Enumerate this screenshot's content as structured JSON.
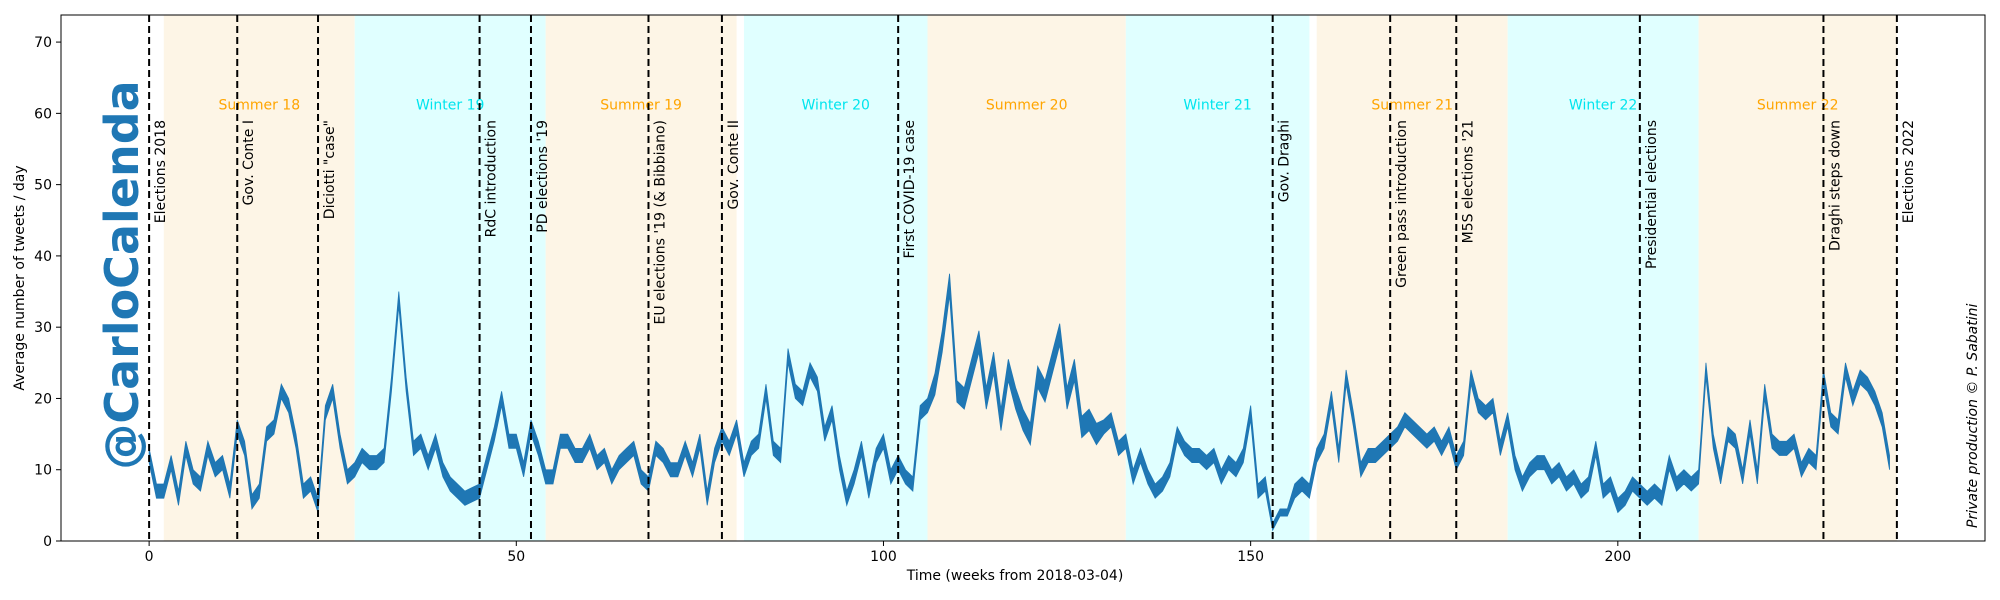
{
  "chart_data": {
    "type": "band",
    "watermark": "@CarloCalenda",
    "credit": "Private production © P. Sabatini",
    "x_label": "Time (weeks from 2018-03-04)",
    "y_label": "Average number of tweets / day",
    "xlim": [
      -12,
      250
    ],
    "ylim": [
      0,
      73.8
    ],
    "xticks": [
      0,
      50,
      100,
      150,
      200
    ],
    "yticks": [
      0,
      10,
      20,
      30,
      40,
      50,
      60,
      70
    ],
    "band": {
      "color": "#1f77b4",
      "x": [
        0,
        1,
        2,
        3,
        4,
        5,
        6,
        7,
        8,
        9,
        10,
        11,
        12,
        13,
        14,
        15,
        16,
        17,
        18,
        19,
        20,
        21,
        22,
        23,
        24,
        25,
        26,
        27,
        28,
        29,
        30,
        31,
        32,
        33,
        34,
        35,
        36,
        37,
        38,
        39,
        40,
        41,
        42,
        43,
        44,
        45,
        46,
        47,
        48,
        49,
        50,
        51,
        52,
        53,
        54,
        55,
        56,
        57,
        58,
        59,
        60,
        61,
        62,
        63,
        64,
        65,
        66,
        67,
        68,
        69,
        70,
        71,
        72,
        73,
        74,
        75,
        76,
        77,
        78,
        79,
        80,
        81,
        82,
        83,
        84,
        85,
        86,
        87,
        88,
        89,
        90,
        91,
        92,
        93,
        94,
        95,
        96,
        97,
        98,
        99,
        100,
        101,
        102,
        103,
        104,
        105,
        106,
        107,
        108,
        109,
        110,
        111,
        112,
        113,
        114,
        115,
        116,
        117,
        118,
        119,
        120,
        121,
        122,
        123,
        124,
        125,
        126,
        127,
        128,
        129,
        130,
        131,
        132,
        133,
        134,
        135,
        136,
        137,
        138,
        139,
        140,
        141,
        142,
        143,
        144,
        145,
        146,
        147,
        148,
        149,
        150,
        151,
        152,
        153,
        154,
        155,
        156,
        157,
        158,
        159,
        160,
        161,
        162,
        163,
        164,
        165,
        166,
        167,
        168,
        169,
        170,
        171,
        172,
        173,
        174,
        175,
        176,
        177,
        178,
        179,
        180,
        181,
        182,
        183,
        184,
        185,
        186,
        187,
        188,
        189,
        190,
        191,
        192,
        193,
        194,
        195,
        196,
        197,
        198,
        199,
        200,
        201,
        202,
        203,
        204,
        205,
        206,
        207,
        208,
        209,
        210,
        211,
        212,
        213,
        214,
        215,
        216,
        217,
        218,
        219,
        220,
        221,
        222,
        223,
        224,
        225,
        226,
        227,
        228,
        229,
        230,
        231,
        232,
        233,
        234,
        235,
        236,
        237
      ],
      "low": [
        11,
        6,
        6,
        10,
        5,
        12,
        8,
        7,
        12,
        9,
        10,
        6,
        15,
        12,
        4.5,
        6,
        14,
        15,
        20,
        18,
        13,
        6,
        7,
        4,
        17,
        20,
        13,
        8,
        9,
        11,
        10,
        10,
        11,
        21,
        33,
        21,
        12,
        13,
        10,
        13,
        9,
        7,
        6,
        5,
        5.5,
        6,
        10,
        14,
        19,
        13,
        13,
        9,
        15,
        12,
        8,
        8,
        13,
        13,
        11,
        11,
        13,
        10,
        11,
        8,
        10,
        11,
        12,
        8,
        7,
        12,
        11,
        9,
        9,
        12,
        9,
        13,
        5,
        11,
        14,
        12,
        15,
        9,
        12,
        13,
        20,
        12,
        11,
        25,
        20,
        19,
        23,
        21,
        14,
        17,
        10,
        5,
        8,
        12,
        6,
        11,
        13,
        8,
        10,
        8,
        7,
        17,
        18,
        20.5,
        26.5,
        34.5,
        19.5,
        18.5,
        22.5,
        26.5,
        18.5,
        23.5,
        15.5,
        22.5,
        18.5,
        15.5,
        13.5,
        21.5,
        19.5,
        23.5,
        27.5,
        18.5,
        22.5,
        14.5,
        15.5,
        13.5,
        15,
        16,
        12,
        13,
        8,
        11,
        8,
        6,
        7,
        9,
        14,
        12,
        11,
        11,
        10,
        11,
        8,
        10,
        9,
        11,
        17,
        6,
        7,
        1.5,
        3.5,
        3.5,
        6,
        7,
        6,
        11,
        13,
        19,
        11,
        22,
        16,
        9,
        11,
        11,
        12,
        13,
        14,
        16,
        15,
        14,
        13,
        14,
        12,
        14,
        10,
        12,
        22,
        18,
        17,
        18,
        12,
        16,
        10,
        7,
        9,
        10,
        10,
        8,
        9,
        7,
        8,
        6,
        7,
        12,
        6,
        7,
        4,
        5,
        7,
        6,
        5,
        6,
        5,
        10,
        7,
        8,
        7,
        8,
        23,
        13,
        8,
        14,
        13,
        8,
        15,
        8,
        20,
        13,
        12,
        12,
        13,
        9,
        11,
        10,
        22,
        16,
        15,
        23,
        19,
        22,
        21,
        19,
        16,
        10
      ],
      "high": [
        13,
        8,
        8,
        12,
        7,
        14,
        10,
        9,
        14,
        11,
        12,
        8,
        17,
        14,
        6.5,
        8,
        16,
        17,
        22,
        20,
        15,
        8,
        9,
        6,
        19,
        22,
        15,
        10,
        11,
        13,
        12,
        12,
        13,
        23,
        35,
        23,
        14,
        15,
        12,
        15,
        11,
        9,
        8,
        7,
        7.5,
        8,
        12,
        16,
        21,
        15,
        15,
        11,
        17,
        14,
        10,
        10,
        15,
        15,
        13,
        13,
        15,
        12,
        13,
        10,
        12,
        13,
        14,
        10,
        9,
        14,
        13,
        11,
        11,
        14,
        11,
        15,
        7,
        13,
        16,
        14,
        17,
        11,
        14,
        15,
        22,
        14,
        13,
        27,
        22,
        21,
        25,
        23,
        16,
        19,
        12,
        7,
        10,
        14,
        8,
        13,
        15,
        10,
        12,
        10,
        9,
        19,
        20,
        23.5,
        29.5,
        37.5,
        22.5,
        21.5,
        25.5,
        29.5,
        21.5,
        26.5,
        18.5,
        25.5,
        21.5,
        18.5,
        16.5,
        24.5,
        22.5,
        26.5,
        30.5,
        21.5,
        25.5,
        17.5,
        18.5,
        16.5,
        17,
        18,
        14,
        15,
        10,
        13,
        10,
        8,
        9,
        11,
        16,
        14,
        13,
        13,
        12,
        13,
        10,
        12,
        11,
        13,
        19,
        8,
        9,
        2.5,
        4.5,
        4.5,
        8,
        9,
        8,
        13,
        15,
        21,
        13,
        24,
        18,
        11,
        13,
        13,
        14,
        15,
        16,
        18,
        17,
        16,
        15,
        16,
        14,
        16,
        12,
        14,
        24,
        20,
        19,
        20,
        14,
        18,
        12,
        9,
        11,
        12,
        12,
        10,
        11,
        9,
        10,
        8,
        9,
        14,
        8,
        9,
        6,
        7,
        9,
        8,
        7,
        8,
        7,
        12,
        9,
        10,
        9,
        10,
        25,
        15,
        10,
        16,
        15,
        10,
        17,
        10,
        22,
        15,
        14,
        14,
        15,
        11,
        13,
        12,
        24,
        18,
        17,
        25,
        21,
        24,
        23,
        21,
        18,
        12
      ]
    },
    "seasons": [
      {
        "label": "Summer 18",
        "start": 2,
        "end": 28,
        "fill": "#fdf5e6",
        "text_color": "#ffa500"
      },
      {
        "label": "Winter 19",
        "start": 28,
        "end": 54,
        "fill": "#e0ffff",
        "text_color": "#00e5ee"
      },
      {
        "label": "Summer 19",
        "start": 54,
        "end": 80,
        "fill": "#fdf5e6",
        "text_color": "#ffa500"
      },
      {
        "label": "Winter 20",
        "start": 81,
        "end": 106,
        "fill": "#e0ffff",
        "text_color": "#00e5ee"
      },
      {
        "label": "Summer 20",
        "start": 106,
        "end": 133,
        "fill": "#fdf5e6",
        "text_color": "#ffa500"
      },
      {
        "label": "Winter 21",
        "start": 133,
        "end": 158,
        "fill": "#e0ffff",
        "text_color": "#00e5ee"
      },
      {
        "label": "Summer 21",
        "start": 159,
        "end": 185,
        "fill": "#fdf5e6",
        "text_color": "#ffa500"
      },
      {
        "label": "Winter 22",
        "start": 185,
        "end": 211,
        "fill": "#e0ffff",
        "text_color": "#00e5ee"
      },
      {
        "label": "Summer 22",
        "start": 211,
        "end": 238,
        "fill": "#fdf5e6",
        "text_color": "#ffa500"
      }
    ],
    "events": [
      {
        "label": "Elections 2018",
        "x": 0
      },
      {
        "label": "Gov. Conte I",
        "x": 12
      },
      {
        "label": "Diciotti \"case\"",
        "x": 23
      },
      {
        "label": "RdC introduction",
        "x": 45
      },
      {
        "label": "PD elections '19",
        "x": 52
      },
      {
        "label": "EU elections '19 (& Bibbiano)",
        "x": 68
      },
      {
        "label": "Gov. Conte II",
        "x": 78
      },
      {
        "label": "First COVID-19 case",
        "x": 102
      },
      {
        "label": "Gov. Draghi",
        "x": 153
      },
      {
        "label": "Green pass introduction",
        "x": 169
      },
      {
        "label": "M5S elections '21",
        "x": 178
      },
      {
        "label": "Presidential elections",
        "x": 203
      },
      {
        "label": "Draghi steps down",
        "x": 228
      },
      {
        "label": "Elections 2022",
        "x": 238
      }
    ]
  }
}
